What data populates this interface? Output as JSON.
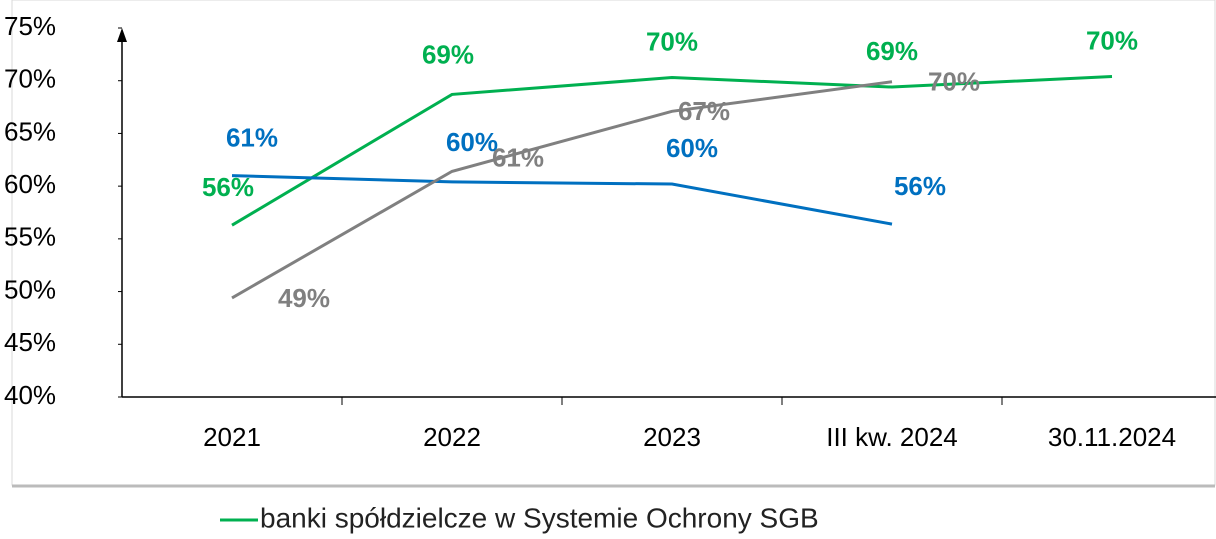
{
  "chart_data": {
    "type": "line",
    "categories": [
      "2021",
      "2022",
      "2023",
      "III kw. 2024",
      "30.11.2024"
    ],
    "series": [
      {
        "name": "banki spółdzielcze w Systemie Ochrony SGB",
        "color": "#00b050",
        "values": [
          56.3,
          68.7,
          70.3,
          69.4,
          70.4
        ],
        "value_labels": [
          "56%",
          "69%",
          "70%",
          "69%",
          "70%"
        ]
      },
      {
        "color": "#0070c0",
        "values": [
          61.0,
          60.4,
          60.2,
          56.4,
          null
        ],
        "value_labels": [
          "61%",
          "60%",
          "60%",
          "56%",
          null
        ]
      },
      {
        "color": "#808080",
        "values": [
          49.4,
          61.4,
          67.1,
          69.9,
          null
        ],
        "value_labels": [
          "49%",
          "61%",
          "67%",
          "70%",
          null
        ]
      }
    ],
    "ylim": [
      40,
      75
    ],
    "yticks": [
      {
        "value": 40,
        "label": "40%"
      },
      {
        "value": 45,
        "label": "45%"
      },
      {
        "value": 50,
        "label": "50%"
      },
      {
        "value": 55,
        "label": "55%"
      },
      {
        "value": 60,
        "label": "60%"
      },
      {
        "value": 65,
        "label": "65%"
      },
      {
        "value": 70,
        "label": "70%"
      },
      {
        "value": 75,
        "label": "75%"
      }
    ]
  }
}
